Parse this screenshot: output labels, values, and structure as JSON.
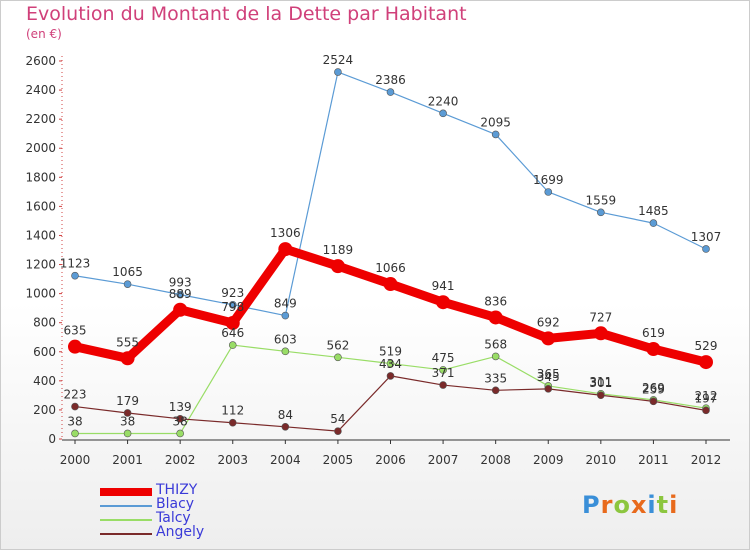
{
  "title": "Evolution du Montant de la Dette par Habitant",
  "subtitle": "(en €)",
  "logo": {
    "text": "Proxiti",
    "colors": [
      "#3a8fd8",
      "#e86a1c",
      "#8cc63f",
      "#e86a1c",
      "#3a8fd8",
      "#8cc63f",
      "#e86a1c"
    ]
  },
  "chart_data": {
    "type": "line",
    "title": "Evolution du Montant de la Dette par Habitant",
    "subtitle": "(en €)",
    "x": [
      "2000",
      "2001",
      "2002",
      "2003",
      "2004",
      "2005",
      "2006",
      "2007",
      "2008",
      "2009",
      "2010",
      "2011",
      "2012"
    ],
    "ylim": [
      0,
      2600
    ],
    "yticks": [
      0,
      200,
      400,
      600,
      800,
      1000,
      1200,
      1400,
      1600,
      1800,
      2000,
      2200,
      2400,
      2600
    ],
    "grid": false,
    "legend_position": "bottom-left",
    "series": [
      {
        "name": "THIZY",
        "color": "#ee0000",
        "values": [
          635,
          555,
          889,
          798,
          1306,
          1189,
          1066,
          941,
          836,
          692,
          727,
          619,
          529
        ],
        "labels": [
          "635",
          "555",
          "889",
          "798",
          "1306",
          "1189",
          "1066",
          "941",
          "836",
          "692",
          "727",
          "619",
          "529"
        ]
      },
      {
        "name": "Blacy",
        "color": "#5b9bd5",
        "values": [
          1123,
          1065,
          993,
          923,
          849,
          2524,
          2386,
          2240,
          2095,
          1699,
          1559,
          1485,
          1307
        ],
        "labels": [
          "1123",
          "1065",
          "993",
          "923",
          "849",
          "2524",
          "2386",
          "2240",
          "2095",
          "1699",
          "1559",
          "1485",
          "1307"
        ]
      },
      {
        "name": "Talcy",
        "color": "#99dd66",
        "values": [
          38,
          38,
          38,
          646,
          603,
          562,
          519,
          475,
          568,
          365,
          311,
          269,
          212
        ],
        "labels": [
          "38",
          "38",
          "38",
          "646",
          "603",
          "562",
          "519",
          "475",
          "568",
          "365",
          "311",
          "269",
          "212"
        ]
      },
      {
        "name": "Angely",
        "color": "#7a2a2a",
        "values": [
          223,
          179,
          139,
          112,
          84,
          54,
          434,
          371,
          335,
          345,
          301,
          259,
          197
        ],
        "labels": [
          "223",
          "179",
          "139",
          "112",
          "84",
          "54",
          "434",
          "371",
          "335",
          "345",
          "301",
          "259",
          "197"
        ]
      }
    ]
  }
}
